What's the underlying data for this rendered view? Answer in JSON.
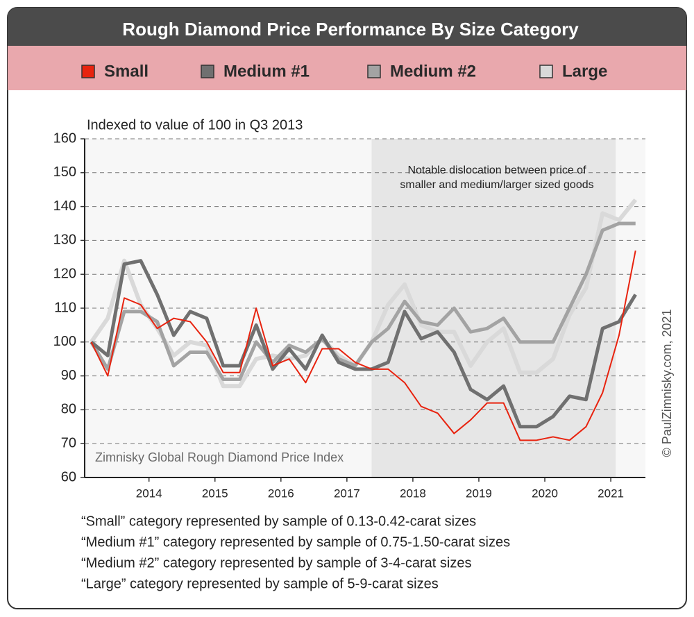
{
  "chart_data": {
    "type": "line",
    "title": "Rough Diamond Price Performance By Size Category",
    "subtitle": "Indexed to value of 100 in Q3 2013",
    "annotation": [
      "Notable dislocation between price of",
      "smaller and medium/larger sized goods"
    ],
    "watermark": "Zimnisky Global Rough Diamond Price Index",
    "copyright": "© PaulZimnisky.com, 2021",
    "notes": [
      "“Small” category represented by sample of 0.13-0.42-carat sizes",
      "“Medium #1” category represented by sample of 0.75-1.50-carat sizes",
      "“Medium #2” category represented by sample of 3-4-carat sizes",
      "“Large” category represented by sample of 5-9-carat sizes"
    ],
    "shaded_region": [
      2017.75,
      2021.45
    ],
    "x": [
      2013.5,
      2013.75,
      2014,
      2014.25,
      2014.5,
      2014.75,
      2015,
      2015.25,
      2015.5,
      2015.75,
      2016,
      2016.25,
      2016.5,
      2016.75,
      2017,
      2017.25,
      2017.5,
      2017.75,
      2018,
      2018.25,
      2018.5,
      2018.75,
      2019,
      2019.25,
      2019.5,
      2019.75,
      2020,
      2020.25,
      2020.5,
      2020.75,
      2021,
      2021.25,
      2021.5,
      2021.75
    ],
    "xlim": [
      2013.4,
      2021.9
    ],
    "xticks": [
      {
        "value": 2014.375,
        "label": "2014"
      },
      {
        "value": 2015.375,
        "label": "2015"
      },
      {
        "value": 2016.375,
        "label": "2016"
      },
      {
        "value": 2017.375,
        "label": "2017"
      },
      {
        "value": 2018.375,
        "label": "2018"
      },
      {
        "value": 2019.375,
        "label": "2019"
      },
      {
        "value": 2020.375,
        "label": "2020"
      },
      {
        "value": 2021.375,
        "label": "2021"
      }
    ],
    "ylim": [
      60,
      160
    ],
    "yticks": [
      60,
      70,
      80,
      90,
      100,
      110,
      120,
      130,
      140,
      150,
      160
    ],
    "grid": true,
    "series": [
      {
        "name": "Small",
        "color": "#e8230f",
        "values": [
          100,
          90,
          113,
          111,
          104,
          107,
          106,
          100,
          91,
          91,
          110,
          93,
          95,
          88,
          98,
          98,
          94,
          92,
          92,
          88,
          81,
          79,
          73,
          77,
          82,
          82,
          71,
          71,
          72,
          71,
          75,
          85,
          102,
          127
        ]
      },
      {
        "name": "Medium #1",
        "color": "#707070",
        "values": [
          100,
          96,
          123,
          124,
          114,
          102,
          109,
          107,
          93,
          93,
          105,
          92,
          98,
          92,
          102,
          94,
          92,
          92,
          94,
          109,
          101,
          103,
          97,
          86,
          83,
          87,
          75,
          75,
          78,
          84,
          83,
          104,
          106,
          114
        ]
      },
      {
        "name": "Medium #2",
        "color": "#a3a3a3",
        "values": [
          100,
          92,
          109,
          109,
          106,
          93,
          97,
          97,
          89,
          89,
          100,
          94,
          99,
          97,
          101,
          95,
          93,
          100,
          104,
          112,
          106,
          105,
          110,
          103,
          104,
          107,
          100,
          100,
          100,
          110,
          120,
          133,
          135,
          135
        ]
      },
      {
        "name": "Large",
        "color": "#d9d9d9",
        "values": [
          100,
          107,
          124,
          111,
          104,
          96,
          100,
          99,
          87,
          87,
          95,
          96,
          95,
          96,
          101,
          96,
          93,
          100,
          111,
          117,
          105,
          103,
          103,
          93,
          100,
          104,
          91,
          91,
          95,
          108,
          116,
          138,
          136,
          142
        ]
      }
    ]
  }
}
